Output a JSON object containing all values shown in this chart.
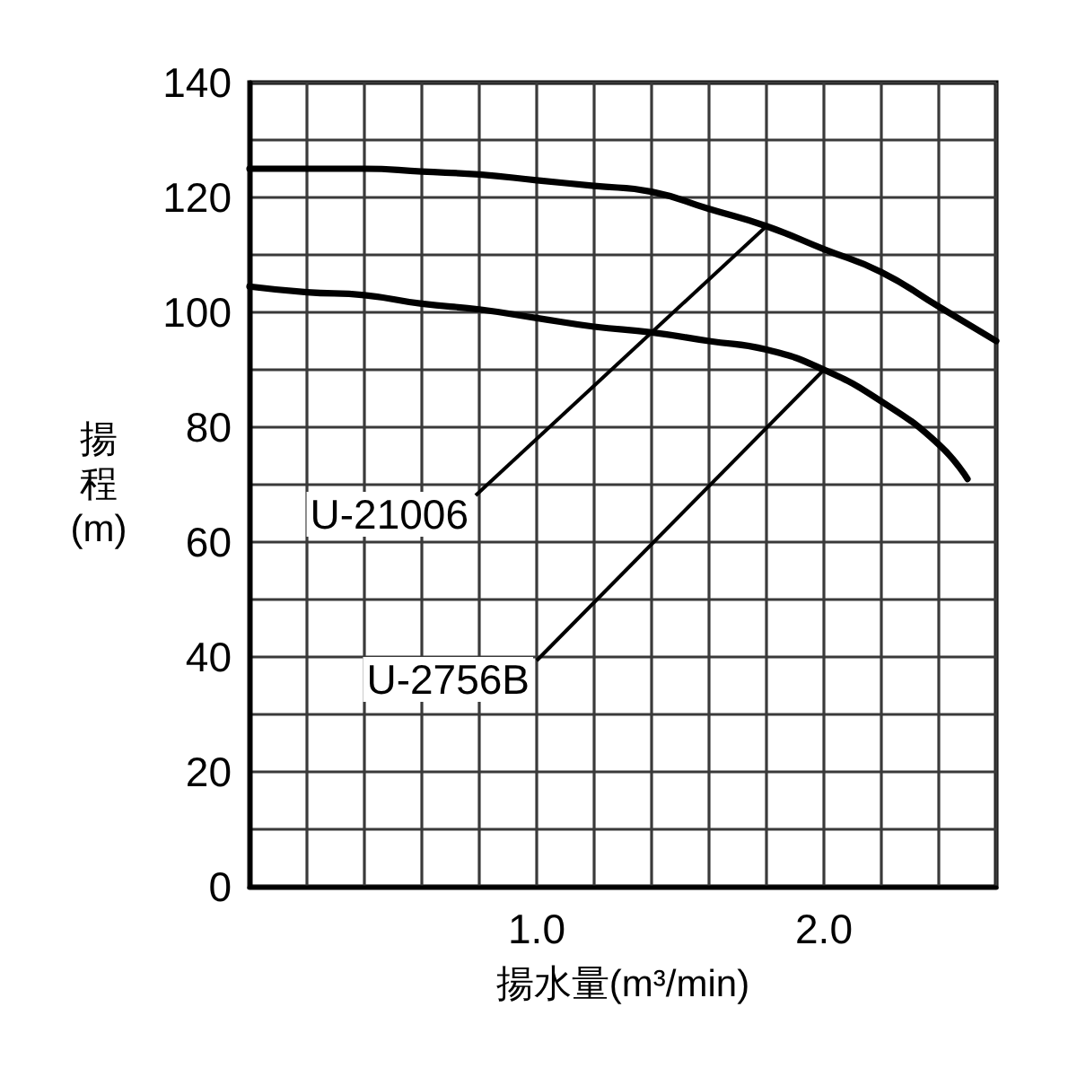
{
  "chart_data": {
    "type": "line",
    "xlabel": "揚水量(m³/min)",
    "ylabel": "揚程(m)",
    "xlim": [
      0,
      2.6
    ],
    "ylim": [
      0,
      140
    ],
    "xticks": [
      {
        "value": 0,
        "label": null
      },
      {
        "value": 0.2,
        "label": null
      },
      {
        "value": 0.4,
        "label": null
      },
      {
        "value": 0.6,
        "label": null
      },
      {
        "value": 0.8,
        "label": null
      },
      {
        "value": 1,
        "label": "1.0"
      },
      {
        "value": 1.2,
        "label": null
      },
      {
        "value": 1.4,
        "label": null
      },
      {
        "value": 1.6,
        "label": null
      },
      {
        "value": 1.8,
        "label": null
      },
      {
        "value": 2,
        "label": "2.0"
      },
      {
        "value": 2.2,
        "label": null
      },
      {
        "value": 2.4,
        "label": null
      },
      {
        "value": 2.6,
        "label": null
      }
    ],
    "yticks": [
      0,
      {
        "value": 10,
        "label": null
      },
      20,
      {
        "value": 30,
        "label": null
      },
      40,
      {
        "value": 50,
        "label": null
      },
      60,
      {
        "value": 70,
        "label": null
      },
      80,
      {
        "value": 90,
        "label": null
      },
      100,
      {
        "value": 110,
        "label": null
      },
      120,
      {
        "value": 130,
        "label": null
      },
      140
    ],
    "grid": true,
    "marker": "none",
    "line_style": "solid",
    "series": [
      {
        "name": "U-21006",
        "color": "#000000",
        "x": [
          0,
          0.2,
          0.4,
          0.6,
          0.8,
          1,
          1.2,
          1.4,
          1.6,
          1.8,
          2,
          2.2,
          2.4,
          2.6
        ],
        "values": [
          125,
          125,
          125,
          124.5,
          124,
          123,
          122,
          121,
          118,
          115,
          111,
          107,
          101,
          95
        ]
      },
      {
        "name": "U-2756B",
        "color": "#000000",
        "x": [
          0,
          0.2,
          0.4,
          0.6,
          0.8,
          1,
          1.2,
          1.4,
          1.6,
          1.8,
          2,
          2.2,
          2.4,
          2.5
        ],
        "values": [
          104.5,
          103.5,
          103,
          101.5,
          100.5,
          99,
          97.5,
          96.5,
          95,
          93.5,
          90,
          84.5,
          77,
          71
        ]
      }
    ]
  }
}
